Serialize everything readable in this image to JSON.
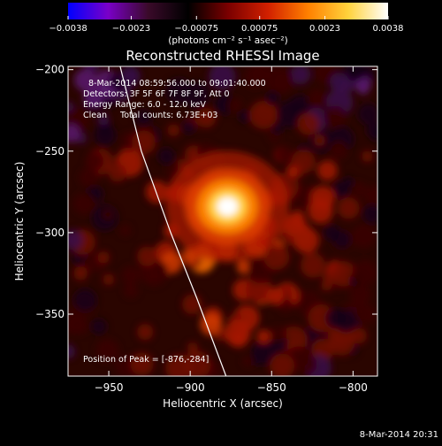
{
  "chart_data": {
    "type": "heatmap",
    "title": "Reconstructed RHESSI Image",
    "xlabel": "Heliocentric X (arcsec)",
    "ylabel": "Heliocentric Y (arcsec)",
    "xlim": [
      -975,
      -785
    ],
    "ylim": [
      -388,
      -198
    ],
    "x_ticks": [
      -950,
      -900,
      -850,
      -800
    ],
    "x_tick_labels": [
      "−950",
      "−900",
      "−850",
      "−800"
    ],
    "y_ticks": [
      -200,
      -250,
      -300,
      -350
    ],
    "y_tick_labels": [
      "−200",
      "−250",
      "−300",
      "−350"
    ],
    "colorbar": {
      "range": [
        -0.0038,
        0.0038
      ],
      "ticks": [
        -0.0038,
        -0.0023,
        -0.00075,
        0.00075,
        0.0023,
        0.0038
      ],
      "tick_labels": [
        "−0.0038",
        "−0.0023",
        "−0.00075",
        "0.00075",
        "0.0023",
        "0.0038"
      ],
      "units_label": "(photons cm⁻² s⁻¹ asec⁻²)",
      "colors": [
        "#0000ff",
        "#7a00c8",
        "#3a0a2a",
        "#000000",
        "#7a0000",
        "#d12000",
        "#ff8000",
        "#ffd23c",
        "#ffffff"
      ]
    },
    "annotations": {
      "time_range": "8-Mar-2014 08:59:56.000 to 09:01:40.000",
      "detectors": "Detectors: 3F 5F 6F 7F 8F 9F, Att 0",
      "energy_range": "Energy Range: 6.0 - 12.0 keV",
      "method": "Clean     Total counts: 6.73E+03",
      "peak_position": "Position of Peak = [-876,-284]"
    },
    "peak": {
      "x": -876,
      "y": -284
    },
    "limb_curve": [
      [
        -943,
        -198
      ],
      [
        -930,
        -250
      ],
      [
        -912,
        -300
      ],
      [
        -896,
        -340
      ],
      [
        -878,
        -388
      ]
    ],
    "grid": false,
    "legend": "none"
  },
  "footer": {
    "timestamp": "8-Mar-2014 20:31"
  }
}
